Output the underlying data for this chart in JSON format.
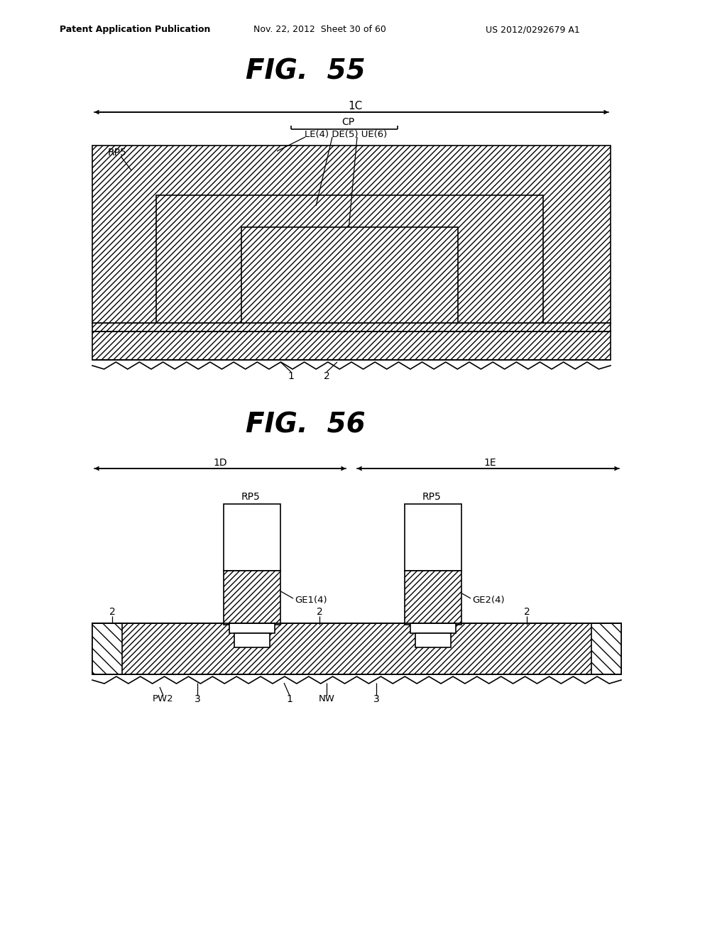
{
  "bg_color": "#ffffff",
  "header_left": "Patent Application Publication",
  "header_mid": "Nov. 22, 2012  Sheet 30 of 60",
  "header_right": "US 2012/0292679 A1",
  "fig55_title": "FIG.  55",
  "fig56_title": "FIG.  56"
}
